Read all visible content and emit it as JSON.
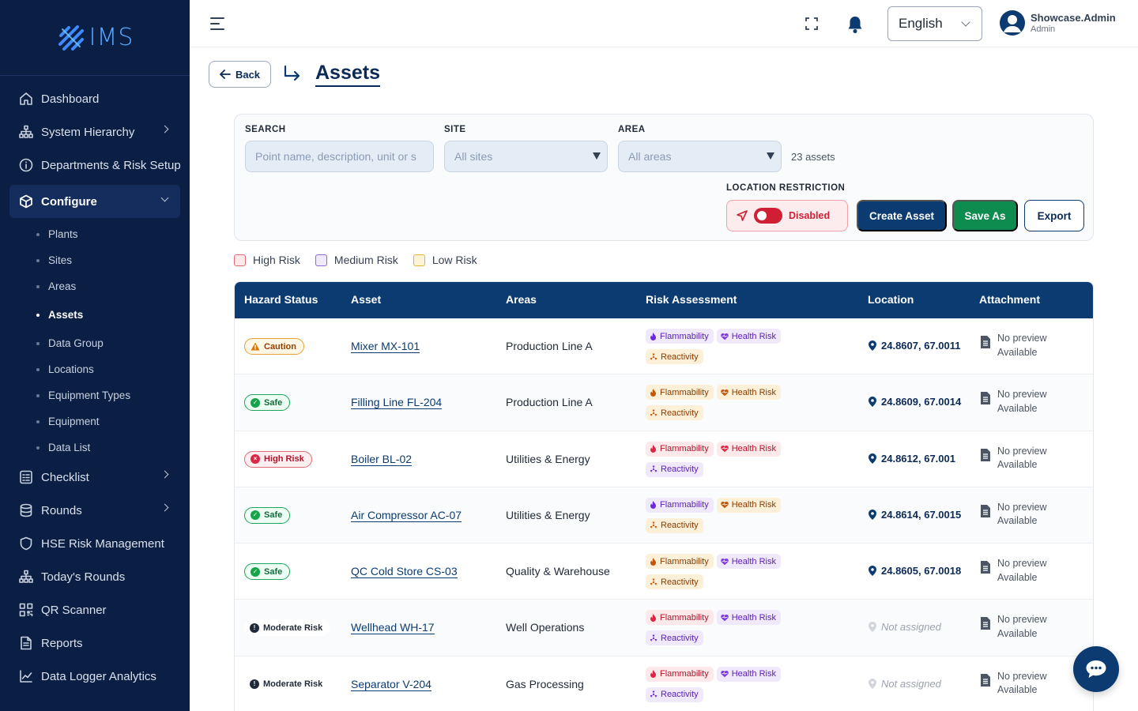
{
  "app": {
    "logo_text": "IMS"
  },
  "sidebar": {
    "items": [
      {
        "label": "Dashboard",
        "icon": "home-icon"
      },
      {
        "label": "System Hierarchy",
        "icon": "hierarchy-icon",
        "chevron": true
      },
      {
        "label": "Departments & Risk Setup",
        "icon": "info-icon"
      },
      {
        "label": "Configure",
        "icon": "cube-icon",
        "expanded": true
      },
      {
        "label": "Checklist",
        "icon": "checklist-icon",
        "chevron": true
      },
      {
        "label": "Rounds",
        "icon": "database-icon",
        "chevron": true
      },
      {
        "label": "HSE Risk Management",
        "icon": "shield-icon"
      },
      {
        "label": "Today's Rounds",
        "icon": "hierarchy-icon"
      },
      {
        "label": "QR Scanner",
        "icon": "qr-icon"
      },
      {
        "label": "Reports",
        "icon": "document-icon"
      },
      {
        "label": "Data Logger Analytics",
        "icon": "chart-icon"
      }
    ],
    "configure_sub": [
      "Plants",
      "Sites",
      "Areas",
      "Assets",
      "Data Group",
      "Locations",
      "Equipment Types",
      "Equipment",
      "Data List"
    ]
  },
  "topbar": {
    "language": "English",
    "user_name": "Showcase.Admin",
    "user_role": "Admin"
  },
  "header": {
    "back_label": "Back",
    "title": "Assets"
  },
  "filters": {
    "search_label": "SEARCH",
    "search_placeholder": "Point name, description, unit or s",
    "site_label": "SITE",
    "site_value": "All sites",
    "area_label": "AREA",
    "area_value": "All areas",
    "count": "23 assets",
    "location_label": "LOCATION RESTRICTION",
    "location_state": "Disabled",
    "create_label": "Create Asset",
    "save_label": "Save As",
    "export_label": "Export"
  },
  "legend": [
    {
      "label": "High Risk",
      "color": "#fde8ea",
      "border": "#e26a78"
    },
    {
      "label": "Medium Risk",
      "color": "#efe9fb",
      "border": "#8b6bd6"
    },
    {
      "label": "Low Risk",
      "color": "#fdf3d6",
      "border": "#e8b23a"
    }
  ],
  "table": {
    "headers": [
      "Hazard Status",
      "Asset",
      "Areas",
      "Risk Assessment",
      "Location",
      "Attachment"
    ],
    "attachment_line1": "No preview",
    "attachment_line2": "Available",
    "rows": [
      {
        "status": "Caution",
        "status_type": "caution",
        "asset": "Mixer MX-101",
        "area": "Production Line A",
        "risks": [
          [
            "Flammability",
            "purple"
          ],
          [
            "Health Risk",
            "purple"
          ],
          [
            "Reactivity",
            "orange"
          ]
        ],
        "location": "24.8607, 67.0011"
      },
      {
        "status": "Safe",
        "status_type": "safe",
        "asset": "Filling Line FL-204",
        "area": "Production Line A",
        "risks": [
          [
            "Flammability",
            "orange"
          ],
          [
            "Health Risk",
            "orange"
          ],
          [
            "Reactivity",
            "orange"
          ]
        ],
        "location": "24.8609, 67.0014"
      },
      {
        "status": "High Risk",
        "status_type": "high",
        "asset": "Boiler BL-02",
        "area": "Utilities & Energy",
        "risks": [
          [
            "Flammability",
            "red"
          ],
          [
            "Health Risk",
            "red"
          ],
          [
            "Reactivity",
            "purple"
          ]
        ],
        "location": "24.8612, 67.001"
      },
      {
        "status": "Safe",
        "status_type": "safe",
        "asset": "Air Compressor AC-07",
        "area": "Utilities & Energy",
        "risks": [
          [
            "Flammability",
            "purple"
          ],
          [
            "Health Risk",
            "orange"
          ],
          [
            "Reactivity",
            "orange"
          ]
        ],
        "location": "24.8614, 67.0015"
      },
      {
        "status": "Safe",
        "status_type": "safe",
        "asset": "QC Cold Store CS-03",
        "area": "Quality & Warehouse",
        "risks": [
          [
            "Flammability",
            "orange"
          ],
          [
            "Health Risk",
            "purple"
          ],
          [
            "Reactivity",
            "orange"
          ]
        ],
        "location": "24.8605, 67.0018"
      },
      {
        "status": "Moderate Risk",
        "status_type": "moderate",
        "asset": "Wellhead WH-17",
        "area": "Well Operations",
        "risks": [
          [
            "Flammability",
            "red"
          ],
          [
            "Health Risk",
            "purple"
          ],
          [
            "Reactivity",
            "purple"
          ]
        ],
        "location": "Not assigned",
        "unassigned": true
      },
      {
        "status": "Moderate Risk",
        "status_type": "moderate",
        "asset": "Separator V-204",
        "area": "Gas Processing",
        "risks": [
          [
            "Flammability",
            "red"
          ],
          [
            "Health Risk",
            "purple"
          ],
          [
            "Reactivity",
            "purple"
          ]
        ],
        "location": "Not assigned",
        "unassigned": true
      }
    ]
  }
}
